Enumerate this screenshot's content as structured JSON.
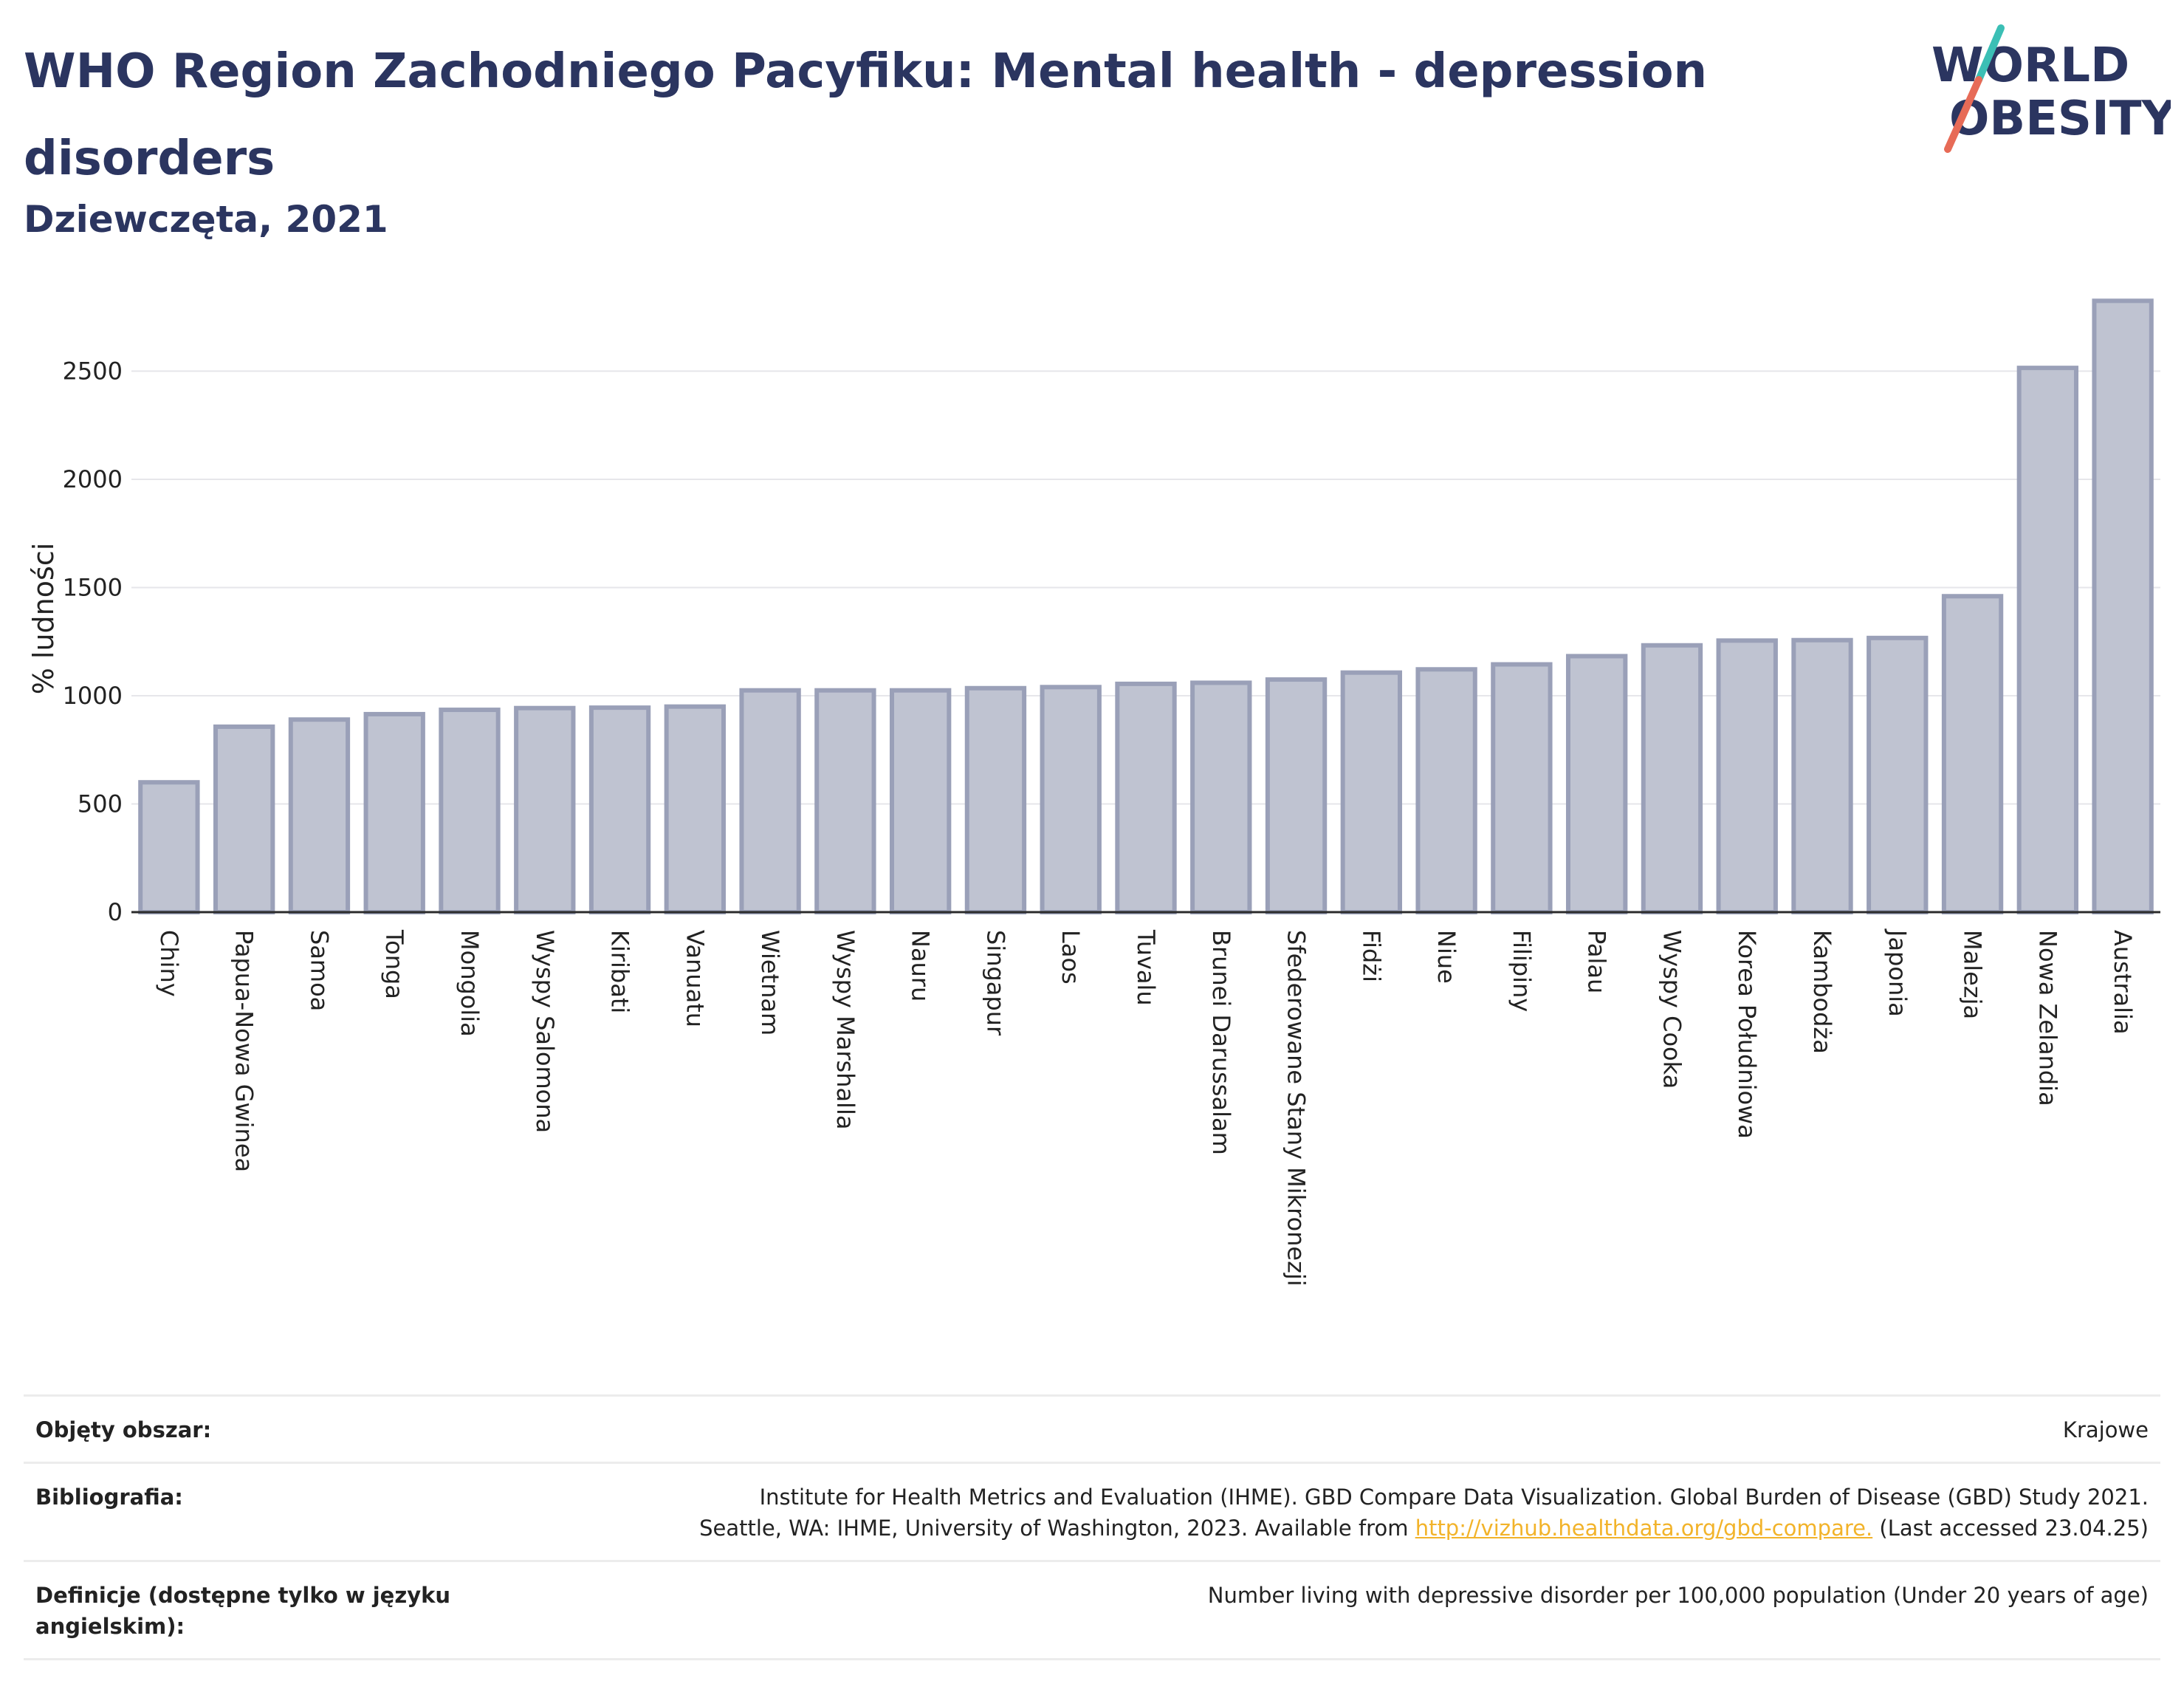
{
  "header": {
    "title": "WHO Region Zachodniego Pacyfiku: Mental health - depression disorders",
    "subtitle": "Dziewczęta, 2021"
  },
  "logo": {
    "line1": "WORLD",
    "line2": "OBESITY",
    "accent_colors": [
      "#3bbfb5",
      "#e76b57"
    ]
  },
  "chart_data": {
    "type": "bar",
    "title": "WHO Region Zachodniego Pacyfiku: Mental health - depression disorders",
    "subtitle": "Dziewczęta, 2021",
    "ylabel": "% ludności",
    "xlabel": "",
    "ylim": [
      0,
      2850
    ],
    "yticks": [
      0,
      500,
      1000,
      1500,
      2000,
      2500
    ],
    "grid": true,
    "bar_color": "#bfc3d1",
    "bar_edge_color": "#9aa0b8",
    "categories": [
      "Chiny",
      "Papua-Nowa Gwinea",
      "Samoa",
      "Tonga",
      "Mongolia",
      "Wyspy Salomona",
      "Kiribati",
      "Vanuatu",
      "Wietnam",
      "Wyspy Marshalla",
      "Nauru",
      "Singapur",
      "Laos",
      "Tuvalu",
      "Brunei Darussalam",
      "Sfederowane Stany Mikronezji",
      "Fidżi",
      "Niue",
      "Filipiny",
      "Palau",
      "Wyspy Cooka",
      "Korea Południowa",
      "Kambodża",
      "Japonia",
      "Malezja",
      "Nowa Zelandia",
      "Australia"
    ],
    "values": [
      600,
      857,
      890,
      915,
      935,
      943,
      945,
      950,
      1025,
      1025,
      1025,
      1035,
      1040,
      1055,
      1060,
      1075,
      1107,
      1122,
      1145,
      1183,
      1233,
      1255,
      1257,
      1267,
      1460,
      2515,
      2825
    ]
  },
  "footer": {
    "rows": [
      {
        "label": "Objęty obszar:",
        "value": "Krajowe"
      },
      {
        "label": "Bibliografia:",
        "value_line1": "Institute for Health Metrics and Evaluation (IHME). GBD Compare Data Visualization. Global Burden of Disease (GBD) Study 2021.",
        "value_line2_pre": "Seattle, WA: IHME, University of Washington, 2023. Available from ",
        "link": "http://vizhub.healthdata.org/gbd-compare.",
        "value_line2_post": " (Last accessed 23.04.25)"
      },
      {
        "label": "Definicje (dostępne tylko w języku angielskim):",
        "value": "Number living with depressive disorder per 100,000 population (Under 20 years of age)"
      }
    ]
  }
}
